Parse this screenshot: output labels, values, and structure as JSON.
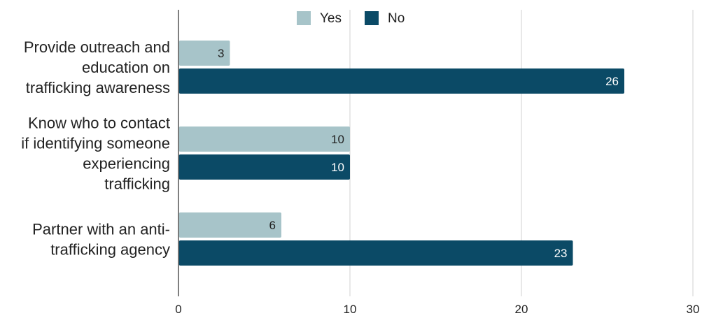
{
  "chart_data": {
    "type": "bar",
    "orientation": "horizontal",
    "categories": [
      [
        "Provide outreach and",
        "education on",
        "trafficking awareness"
      ],
      [
        "Know who to contact",
        "if identifying someone",
        "experiencing",
        "trafficking"
      ],
      [
        "Partner with an anti-",
        "trafficking agency"
      ]
    ],
    "series": [
      {
        "name": "Yes",
        "values": [
          3,
          10,
          6
        ],
        "color": "#a7c4c9",
        "label_color": "#222222"
      },
      {
        "name": "No",
        "values": [
          26,
          10,
          23
        ],
        "color": "#0b4a66",
        "label_color": "#ffffff"
      }
    ],
    "xlim": [
      0,
      30
    ],
    "xticks": [
      0,
      10,
      20,
      30
    ],
    "grid": true,
    "legend_position": "top-center",
    "title": "",
    "xlabel": "",
    "ylabel": ""
  }
}
